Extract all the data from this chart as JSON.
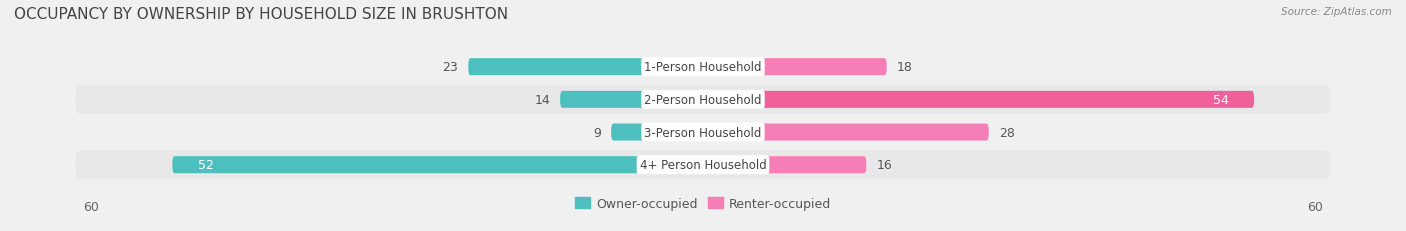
{
  "title": "OCCUPANCY BY OWNERSHIP BY HOUSEHOLD SIZE IN BRUSHTON",
  "source": "Source: ZipAtlas.com",
  "categories": [
    "1-Person Household",
    "2-Person Household",
    "3-Person Household",
    "4+ Person Household"
  ],
  "owner_values": [
    23,
    14,
    9,
    52
  ],
  "renter_values": [
    18,
    54,
    28,
    16
  ],
  "owner_color": "#4dbfbf",
  "renter_color": "#f57eb6",
  "renter_color_dark": "#f0609a",
  "axis_max": 60,
  "bg_color": "#f0f0f0",
  "row_colors": [
    "#f0f0f0",
    "#e8e8e8",
    "#f0f0f0",
    "#e8e8e8"
  ],
  "title_fontsize": 11,
  "value_fontsize": 9,
  "label_fontsize": 8.5,
  "legend_fontsize": 9
}
